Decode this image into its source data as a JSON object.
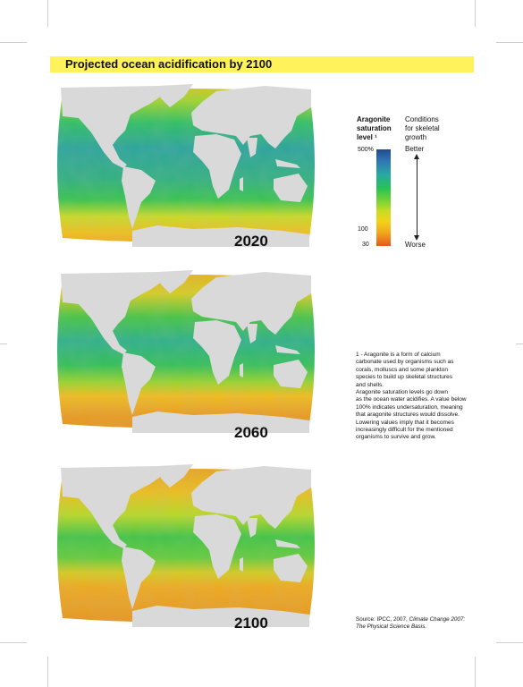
{
  "title": "Projected ocean acidification by 2100",
  "maps": [
    {
      "year": "2020"
    },
    {
      "year": "2060"
    },
    {
      "year": "2100"
    }
  ],
  "legend": {
    "heading": [
      "Aragonite",
      "saturation",
      "level ¹"
    ],
    "conditions_heading": [
      "Conditions",
      "for skeletal",
      "growth"
    ],
    "ticks": [
      "500%",
      "100",
      "30"
    ],
    "better": "Better",
    "worse": "Worse",
    "colors": [
      "#214a8c",
      "#2aa8a4",
      "#26c257",
      "#c8dc22",
      "#f2d31b",
      "#e7581f"
    ]
  },
  "footnote": [
    "1 - Aragonite is a form of calcium",
    "carbonate used by organisms such as",
    "corals, molluscs and some plankton",
    "species to build up skeletal structures",
    "and shells.",
    "Aragonite saturation levels go down",
    "as the ocean water acidifies. A value below",
    "100% indicates undersaturation, meaning",
    "that aragonite structures would dissolve.",
    "Lowering values imply that it becomes",
    "increasingly difficult for the mentioned",
    "organisms to survive and grow."
  ],
  "source": {
    "prefix": "Source: IPCC, 2007, ",
    "italic1": "Climate Change 2007:",
    "italic2": "The Physical Science Basis."
  }
}
